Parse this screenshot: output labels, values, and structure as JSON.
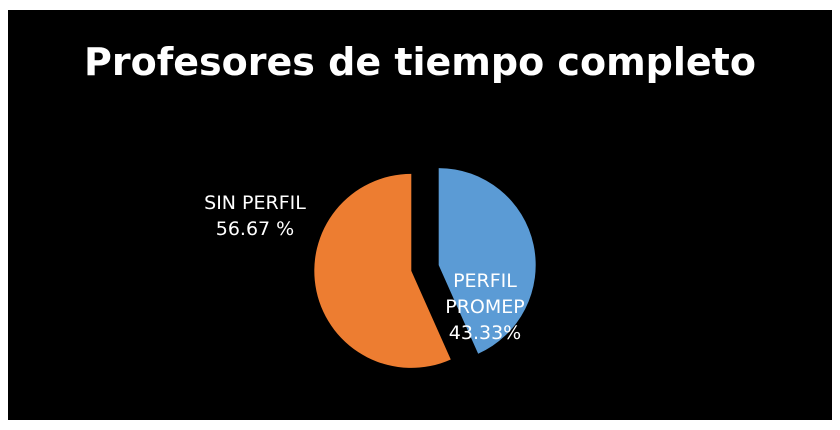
{
  "chart_data": {
    "type": "pie",
    "title": "Profesores de tiempo completo",
    "categories": [
      "PERFIL PROMEP",
      "SIN PERFIL"
    ],
    "values": [
      43.33,
      56.67
    ],
    "value_labels": [
      "43.33%",
      "56.67 %"
    ],
    "colors": [
      "#5b9bd5",
      "#ed7d31"
    ]
  }
}
